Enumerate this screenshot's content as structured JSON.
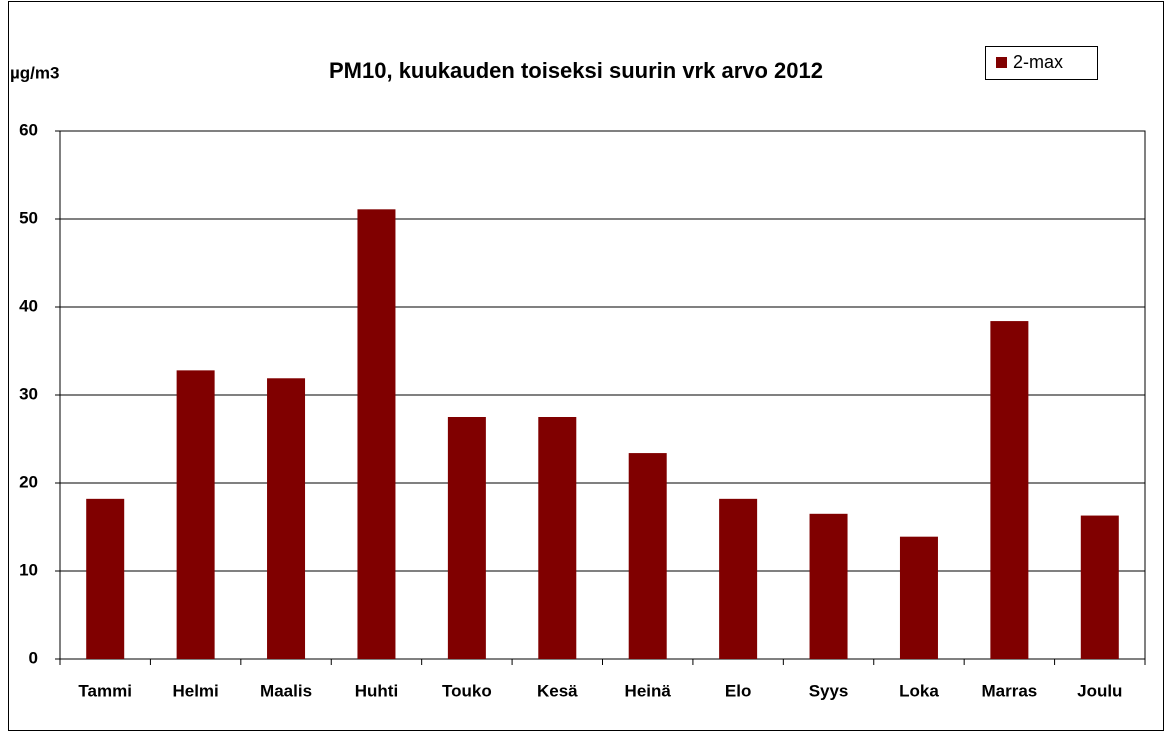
{
  "chart_data": {
    "type": "bar",
    "title": "PM10, kuukauden toiseksi suurin vrk arvo 2012",
    "y_label": "µg/m3",
    "categories": [
      "Tammi",
      "Helmi",
      "Maalis",
      "Huhti",
      "Touko",
      "Kesä",
      "Heinä",
      "Elo",
      "Syys",
      "Loka",
      "Marras",
      "Joulu"
    ],
    "series": [
      {
        "name": "2-max",
        "color": "#800000",
        "values": [
          18.2,
          32.8,
          31.9,
          51.1,
          27.5,
          27.5,
          23.4,
          18.2,
          16.5,
          13.9,
          38.4,
          16.3
        ]
      }
    ],
    "ylim": [
      0,
      60
    ],
    "yticks": [
      0,
      10,
      20,
      30,
      40,
      50,
      60
    ],
    "grid": true,
    "legend": "top-right"
  }
}
